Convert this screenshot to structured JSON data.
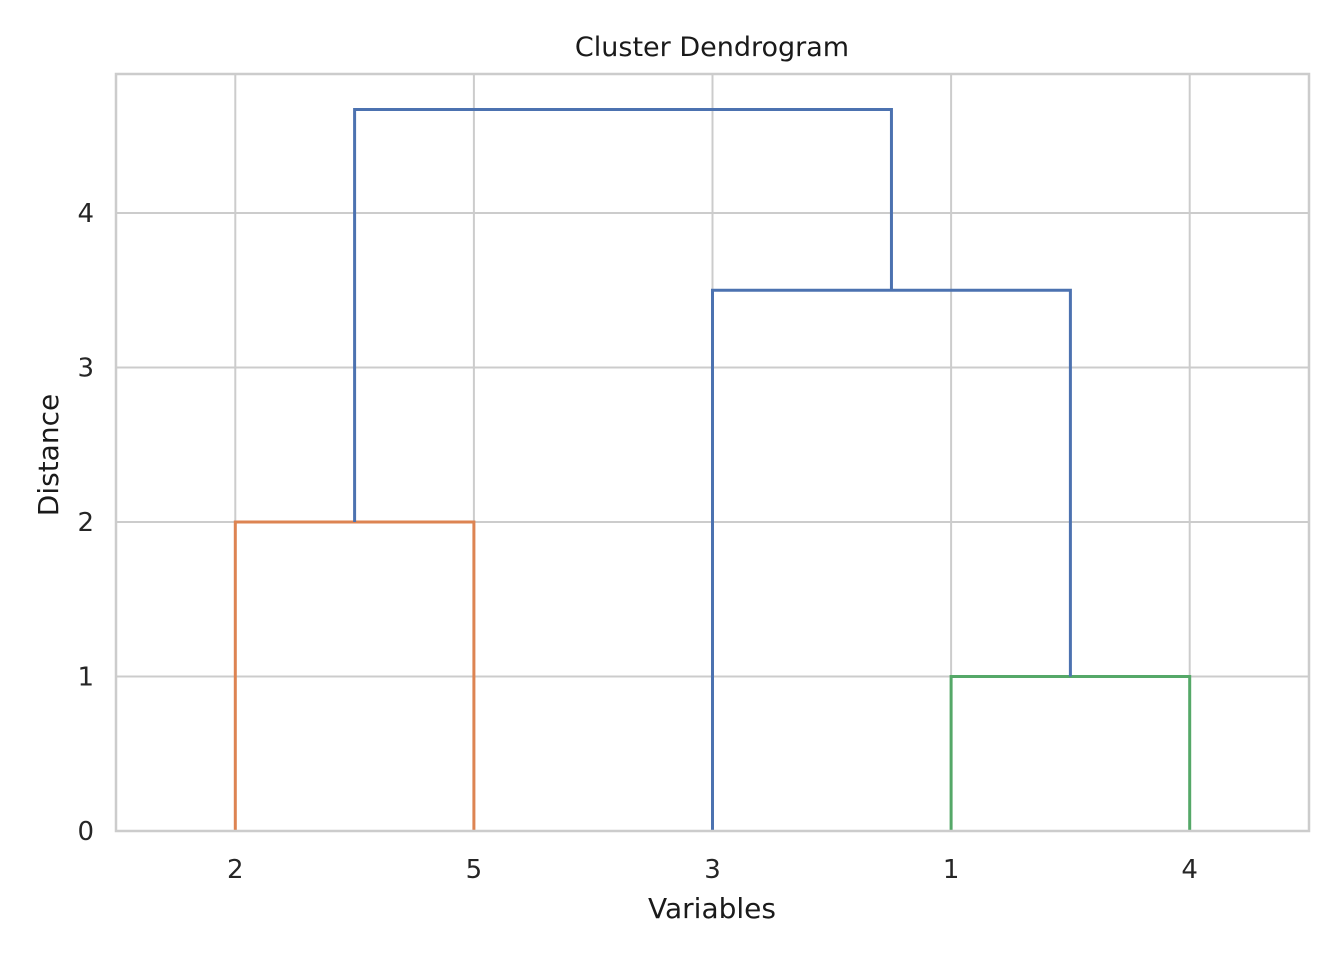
{
  "chart_data": {
    "type": "dendrogram",
    "title": "Cluster Dendrogram",
    "xlabel": "Variables",
    "ylabel": "Distance",
    "leaves": [
      "2",
      "5",
      "3",
      "1",
      "4"
    ],
    "ylim": [
      0,
      4.9
    ],
    "yticks": [
      0,
      1,
      2,
      3,
      4
    ],
    "grid": true,
    "links": [
      {
        "left": "1",
        "right": "4",
        "height": 1.0,
        "color": "#55a868"
      },
      {
        "left": "2",
        "right": "5",
        "height": 2.0,
        "color": "#dd8452"
      },
      {
        "left": "3",
        "right": "(1,4)",
        "height": 3.5,
        "color": "#4c72b0"
      },
      {
        "left": "(2,5)",
        "right": "(3,(1,4))",
        "height": 4.67,
        "color": "#4c72b0"
      }
    ],
    "colors": {
      "cluster_a": "#dd8452",
      "cluster_b": "#55a868",
      "above_threshold": "#4c72b0"
    }
  }
}
